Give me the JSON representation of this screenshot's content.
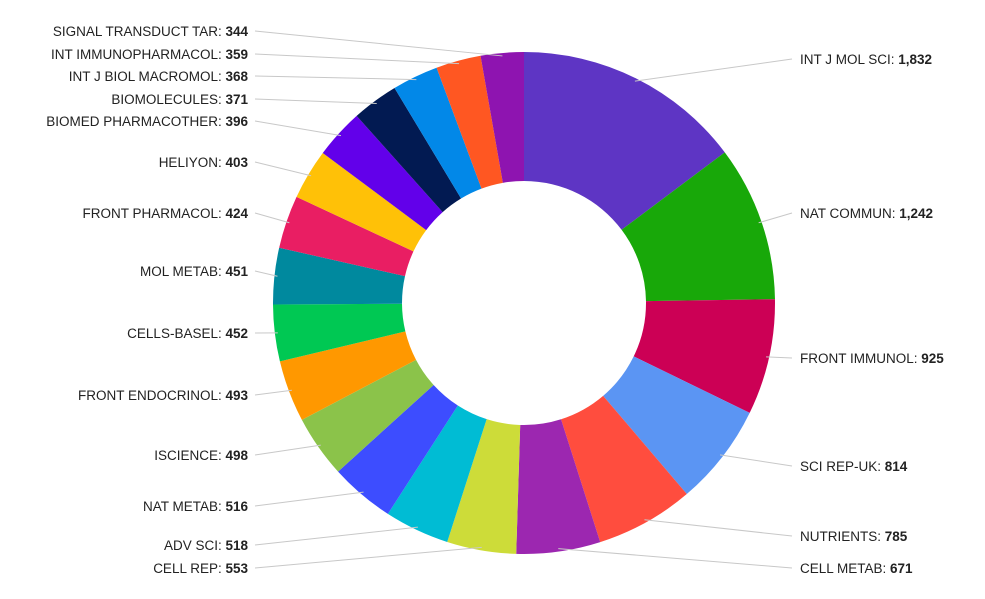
{
  "chart_data": {
    "type": "pie",
    "donut": true,
    "title": "",
    "slices": [
      {
        "label": "INT J MOL SCI",
        "value": 1832,
        "display": "1,832",
        "color": "#5e35c4"
      },
      {
        "label": "NAT COMMUN",
        "value": 1242,
        "display": "1,242",
        "color": "#18a809"
      },
      {
        "label": "FRONT IMMUNOL",
        "value": 925,
        "display": "925",
        "color": "#cc0055"
      },
      {
        "label": "SCI REP-UK",
        "value": 814,
        "display": "814",
        "color": "#5b95f3"
      },
      {
        "label": "NUTRIENTS",
        "value": 785,
        "display": "785",
        "color": "#ff4d3e"
      },
      {
        "label": "CELL METAB",
        "value": 671,
        "display": "671",
        "color": "#9c27b0"
      },
      {
        "label": "CELL REP",
        "value": 553,
        "display": "553",
        "color": "#cddc39"
      },
      {
        "label": "ADV SCI",
        "value": 518,
        "display": "518",
        "color": "#00bcd4"
      },
      {
        "label": "NAT METAB",
        "value": 516,
        "display": "516",
        "color": "#3d4dff"
      },
      {
        "label": "ISCIENCE",
        "value": 498,
        "display": "498",
        "color": "#8bc34a"
      },
      {
        "label": "FRONT ENDOCRINOL",
        "value": 493,
        "display": "493",
        "color": "#ff9800"
      },
      {
        "label": "CELLS-BASEL",
        "value": 452,
        "display": "452",
        "color": "#00c853"
      },
      {
        "label": "MOL METAB",
        "value": 451,
        "display": "451",
        "color": "#00899e"
      },
      {
        "label": "FRONT PHARMACOL",
        "value": 424,
        "display": "424",
        "color": "#e91e63"
      },
      {
        "label": "HELIYON",
        "value": 403,
        "display": "403",
        "color": "#ffc107"
      },
      {
        "label": "BIOMED PHARMACOTHER",
        "value": 396,
        "display": "396",
        "color": "#6200ea"
      },
      {
        "label": "BIOMOLECULES",
        "value": 371,
        "display": "371",
        "color": "#021a52"
      },
      {
        "label": "INT J BIOL MACROMOL",
        "value": 368,
        "display": "368",
        "color": "#0288e8"
      },
      {
        "label": "INT IMMUNOPHARMACOL",
        "value": 359,
        "display": "359",
        "color": "#ff5722"
      },
      {
        "label": "SIGNAL TRANSDUCT TAR",
        "value": 344,
        "display": "344",
        "color": "#8e14b0"
      }
    ]
  }
}
